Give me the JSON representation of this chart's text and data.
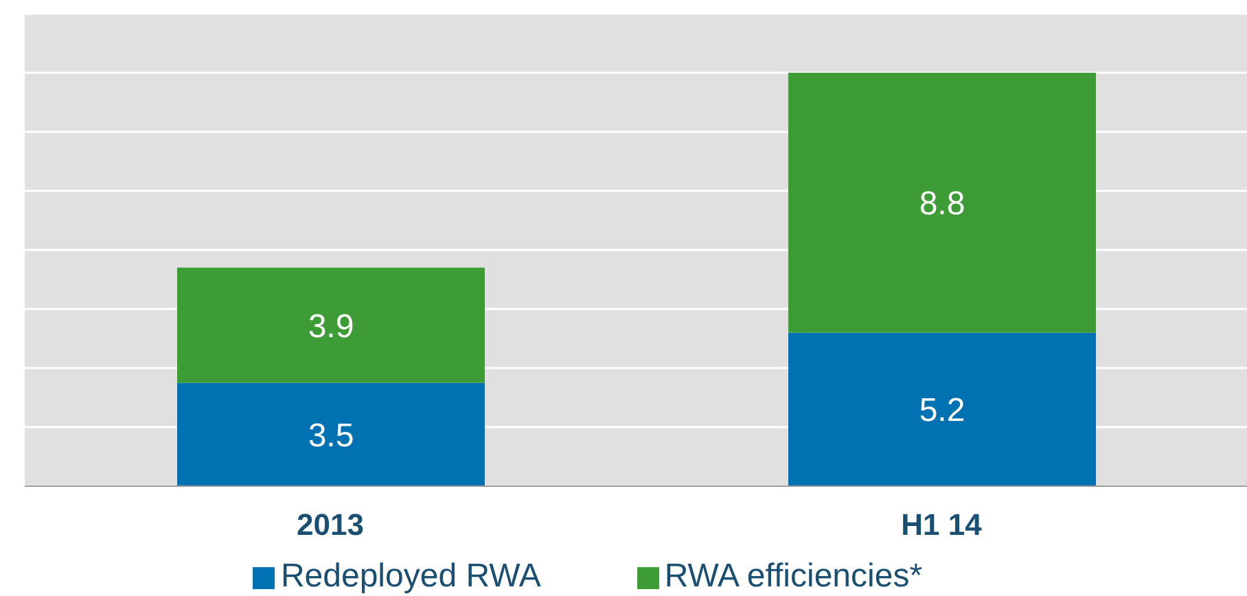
{
  "chart_data": {
    "type": "bar",
    "stacked": true,
    "categories": [
      "2013",
      "H1 14"
    ],
    "series": [
      {
        "name": "Redeployed RWA",
        "color": "#0072b2",
        "values": [
          3.5,
          5.2
        ]
      },
      {
        "name": "RWA efficiencies*",
        "color": "#3d9c35",
        "values": [
          3.9,
          8.8
        ]
      }
    ],
    "ylim": [
      0,
      16
    ],
    "yticks": [
      {
        "value": 0,
        "label": null
      },
      {
        "value": 2,
        "label": null
      },
      {
        "value": 4,
        "label": null
      },
      {
        "value": 6,
        "label": null
      },
      {
        "value": 8,
        "label": null
      },
      {
        "value": 10,
        "label": null
      },
      {
        "value": 12,
        "label": null
      },
      {
        "value": 14,
        "label": null
      },
      {
        "value": 16,
        "label": null
      }
    ],
    "tick_labels": "x",
    "grid": "y",
    "data_labels": true,
    "legend": "bottom"
  }
}
